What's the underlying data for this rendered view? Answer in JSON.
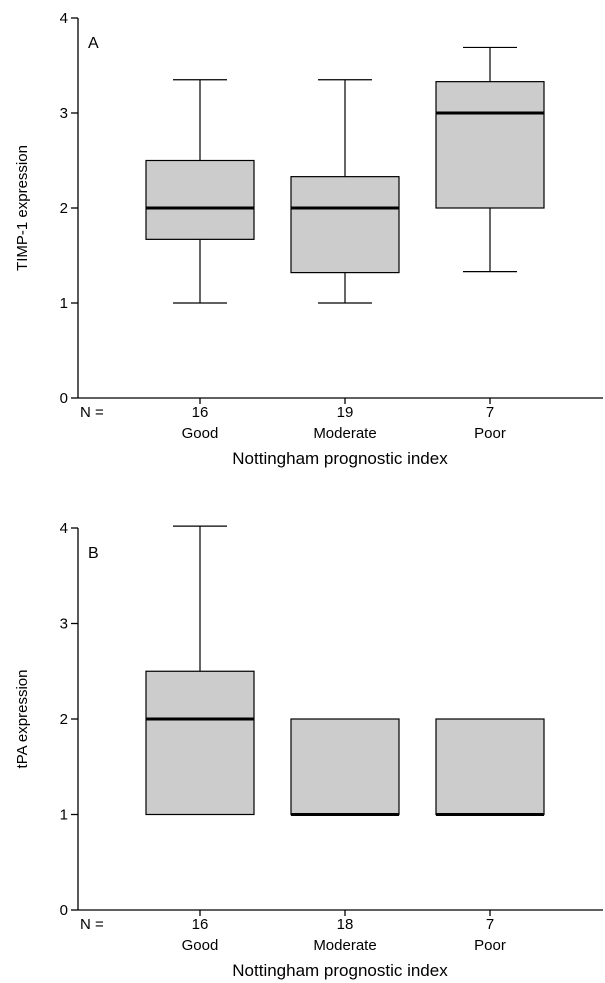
{
  "chart_data": [
    {
      "type": "boxplot",
      "panel_label": "A",
      "ylabel": "TIMP-1 expression",
      "xlabel": "Nottingham prognostic index",
      "n_label": "N =",
      "ylim": [
        0,
        4
      ],
      "yticks": [
        "0",
        "1",
        "2",
        "3",
        "4"
      ],
      "categories": [
        "Good",
        "Moderate",
        "Poor"
      ],
      "n": [
        "16",
        "19",
        "7"
      ],
      "boxes": [
        {
          "min": 1,
          "q1": 1.67,
          "median": 2,
          "q3": 2.5,
          "max": 3.35
        },
        {
          "min": 1,
          "q1": 1.32,
          "median": 2,
          "q3": 2.33,
          "max": 3.35
        },
        {
          "min": 1.33,
          "q1": 2,
          "median": 3,
          "q3": 3.33,
          "max": 3.69
        }
      ],
      "box_color": "#cccccc"
    },
    {
      "type": "boxplot",
      "panel_label": "B",
      "ylabel": "tPA expression",
      "xlabel": "Nottingham prognostic index",
      "n_label": "N =",
      "ylim": [
        0,
        4
      ],
      "yticks": [
        "0",
        "1",
        "2",
        "3",
        "4"
      ],
      "categories": [
        "Good",
        "Moderate",
        "Poor"
      ],
      "n": [
        "16",
        "18",
        "7"
      ],
      "boxes": [
        {
          "min": 1,
          "q1": 1,
          "median": 2,
          "q3": 2.5,
          "max": 4.02
        },
        {
          "min": 1,
          "q1": 1,
          "median": 1,
          "q3": 2,
          "max": 2
        },
        {
          "min": 1,
          "q1": 1,
          "median": 1,
          "q3": 2,
          "max": 2
        }
      ],
      "box_color": "#cccccc"
    }
  ]
}
